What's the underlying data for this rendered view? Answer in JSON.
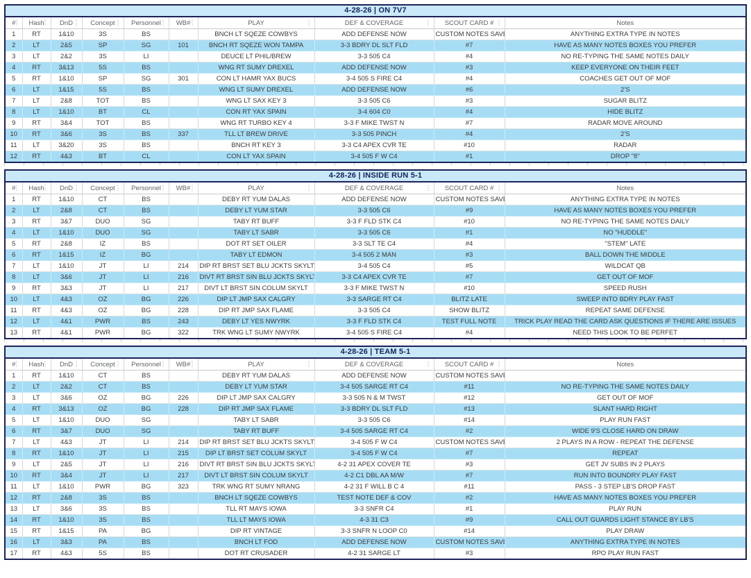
{
  "app": {
    "description_colors": {
      "frame_navy": "#1c2257",
      "row_alt_blue": "#a6ddf4",
      "title_bar_blue": "#c9e9f8",
      "header_text_gray": "#5f6368"
    },
    "kebab_icon": "⋮"
  },
  "table": {
    "columns": [
      {
        "label": "#",
        "has_menu": true
      },
      {
        "label": "Hash",
        "has_menu": true
      },
      {
        "label": "DnD",
        "has_menu": true
      },
      {
        "label": "Concept",
        "has_menu": true
      },
      {
        "label": "Personnel",
        "has_menu": true
      },
      {
        "label": "WB#",
        "has_menu": true
      },
      {
        "label": "PLAY",
        "has_menu": true
      },
      {
        "label": "DEF & COVERAGE",
        "has_menu": true
      },
      {
        "label": "SCOUT CARD #",
        "has_menu": true
      },
      {
        "label": "Notes",
        "has_menu": false
      }
    ],
    "sections": [
      {
        "title": "4-28-26 | ON 7V7",
        "rows": [
          [
            "1",
            "RT",
            "1&10",
            "3S",
            "BS",
            "",
            "BNCH LT SQEZE COWBYS",
            "ADD DEFENSE NOW",
            "CUSTOM NOTES SAVE",
            "ANYTHING EXTRA TYPE IN NOTES"
          ],
          [
            "2",
            "LT",
            "2&5",
            "SP",
            "SG",
            "101",
            "BNCH RT SQEZE WON TAMPA",
            "3-3 BDRY DL SLT FLD",
            "#7",
            "HAVE AS MANY NOTES BOXES YOU PREFER"
          ],
          [
            "3",
            "LT",
            "2&2",
            "3S",
            "LI",
            "",
            "DEUCE LT PHIL/BREW",
            "3-3 505 C4",
            "#4",
            "NO RE-TYPING THE SAME NOTES DAILY"
          ],
          [
            "4",
            "RT",
            "3&13",
            "5S",
            "BS",
            "",
            "WNG RT SUMY DREXEL",
            "ADD DEFENSE NOW",
            "#3",
            "KEEP EVERYONE ON THEIR FEET"
          ],
          [
            "5",
            "RT",
            "1&10",
            "SP",
            "SG",
            "301",
            "CON LT HAMR YAX BUCS",
            "3-4 505 S FIRE C4",
            "#4",
            "COACHES GET OUT OF MOF"
          ],
          [
            "6",
            "LT",
            "1&15",
            "5S",
            "BS",
            "",
            "WNG LT SUMY DREXEL",
            "ADD DEFENSE NOW",
            "#6",
            "2'S"
          ],
          [
            "7",
            "LT",
            "2&8",
            "TOT",
            "BS",
            "",
            "WNG LT SAX KEY 3",
            "3-3 505 C6",
            "#3",
            "SUGAR BLITZ"
          ],
          [
            "8",
            "LT",
            "1&10",
            "BT",
            "CL",
            "",
            "CON RT YAX SPAIN",
            "3-4 604 C0",
            "#4",
            "HIDE BLITZ"
          ],
          [
            "9",
            "RT",
            "3&4",
            "TOT",
            "BS",
            "",
            "WNG RT TURBO KEY 4",
            "3-3 F MIKE TWST N",
            "#7",
            "RADAR MOVE AROUND"
          ],
          [
            "10",
            "RT",
            "3&6",
            "3S",
            "BS",
            "337",
            "TLL LT BREW DRIVE",
            "3-3 505 PINCH",
            "#4",
            "2'S"
          ],
          [
            "11",
            "LT",
            "3&20",
            "3S",
            "BS",
            "",
            "BNCH RT KEY 3",
            "3-3 C4 APEX CVR TE",
            "#10",
            "RADAR"
          ],
          [
            "12",
            "RT",
            "4&3",
            "BT",
            "CL",
            "",
            "CON LT YAX SPAIN",
            "3-4 505 F W C4",
            "#1",
            "DROP \"8\""
          ]
        ]
      },
      {
        "title": "4-28-26 | INSIDE RUN 5-1",
        "rows": [
          [
            "1",
            "RT",
            "1&10",
            "CT",
            "BS",
            "",
            "DEBY RT YUM DALAS",
            "ADD DEFENSE NOW",
            "CUSTOM NOTES SAVE",
            "ANYTHING EXTRA TYPE IN NOTES"
          ],
          [
            "2",
            "LT",
            "2&8",
            "CT",
            "BS",
            "",
            "DEBY LT YUM STAR",
            "3-3 505 C6",
            "#9",
            "HAVE AS MANY NOTES BOXES YOU PREFER"
          ],
          [
            "3",
            "RT",
            "3&7",
            "DUO",
            "SG",
            "",
            "TABY RT BUFF",
            "3-3 F FLD STK C4",
            "#10",
            "NO RE-TYPING THE SAME NOTES DAILY"
          ],
          [
            "4",
            "LT",
            "1&10",
            "DUO",
            "SG",
            "",
            "TABY LT SABR",
            "3-3 505 C6",
            "#1",
            "NO \"HUDDLE\""
          ],
          [
            "5",
            "RT",
            "2&8",
            "IZ",
            "BS",
            "",
            "DOT RT SET OILER",
            "3-3 SLT TE C4",
            "#4",
            "\"STEM\" LATE"
          ],
          [
            "6",
            "RT",
            "1&15",
            "IZ",
            "BG",
            "",
            "TABY LT EDMON",
            "3-4 505 2 MAN",
            "#3",
            "BALL DOWN THE MIDDLE"
          ],
          [
            "7",
            "LT",
            "1&10",
            "JT",
            "LI",
            "214",
            "DIP RT BRST SET BLU JCKTS SKYLT",
            "3-4 505 C4",
            "#5",
            "WILDCAT QB"
          ],
          [
            "8",
            "LT",
            "3&6",
            "JT",
            "LI",
            "216",
            "DIVT RT BRST SIN BLU JCKTS SKYLT",
            "3-3 C4 APEX CVR TE",
            "#7",
            "GET OUT OF MOF"
          ],
          [
            "9",
            "RT",
            "3&3",
            "JT",
            "LI",
            "217",
            "DIVT LT BRST SIN COLUM SKYLT",
            "3-3 F MIKE TWST N",
            "#10",
            "SPEED RUSH"
          ],
          [
            "10",
            "LT",
            "4&3",
            "OZ",
            "BG",
            "226",
            "DIP LT JMP SAX CALGRY",
            "3-3 SARGE RT C4",
            "BLITZ LATE",
            "SWEEP INTO BDRY PLAY FAST"
          ],
          [
            "11",
            "RT",
            "4&3",
            "OZ",
            "BG",
            "228",
            "DIP RT JMP SAX FLAME",
            "3-3 505 C4",
            "SHOW BLITZ",
            "REPEAT SAME DEFENSE"
          ],
          [
            "12",
            "LT",
            "4&1",
            "PWR",
            "BS",
            "243",
            "DEBY LT YES NWYRK",
            "3-3 F FLD STK C4",
            "TEST FULL NOTE",
            "TRICK PLAY READ THE CARD ASK QUESTIONS IF THERE ARE ISSUES"
          ],
          [
            "13",
            "RT",
            "4&1",
            "PWR",
            "BG",
            "322",
            "TRK WNG LT SUMY NWYRK",
            "3-4 505 S FIRE C4",
            "#4",
            "NEED THIS LOOK TO BE PERFET"
          ]
        ]
      },
      {
        "title": "4-28-26 | TEAM 5-1",
        "rows": [
          [
            "1",
            "RT",
            "1&10",
            "CT",
            "BS",
            "",
            "DEBY RT YUM DALAS",
            "ADD DEFENSE NOW",
            "CUSTOM NOTES SAVE",
            ""
          ],
          [
            "2",
            "LT",
            "2&2",
            "CT",
            "BS",
            "",
            "DEBY LT YUM STAR",
            "3-4 505 SARGE RT C4",
            "#11",
            "NO RE-TYPING THE SAME NOTES DAILY"
          ],
          [
            "3",
            "LT",
            "3&6",
            "OZ",
            "BG",
            "226",
            "DIP LT JMP SAX CALGRY",
            "3-3 505 N & M TWST",
            "#12",
            "GET OUT OF MOF"
          ],
          [
            "4",
            "RT",
            "3&13",
            "OZ",
            "BG",
            "228",
            "DIP RT JMP SAX FLAME",
            "3-3 BDRY DL SLT FLD",
            "#13",
            "SLANT HARD RIGHT"
          ],
          [
            "5",
            "LT",
            "1&10",
            "DUO",
            "SG",
            "",
            "TABY LT SABR",
            "3-3 505 C6",
            "#14",
            "PLAY RUN FAST"
          ],
          [
            "6",
            "RT",
            "3&7",
            "DUO",
            "SG",
            "",
            "TABY RT BUFF",
            "3-4 505 SARGE RT C4",
            "#2",
            "WIDE 9'S CLOSE HARD ON DRAW"
          ],
          [
            "7",
            "LT",
            "4&3",
            "JT",
            "LI",
            "214",
            "DIP RT BRST SET BLU JCKTS SKYLT",
            "3-4 505 F W C4",
            "CUSTOM NOTES SAVE",
            "2 PLAYS IN A ROW - REPEAT THE DEFENSE"
          ],
          [
            "8",
            "RT",
            "1&10",
            "JT",
            "LI",
            "215",
            "DIP LT BRST SET COLUM SKYLT",
            "3-4 505 F W C4",
            "#7",
            "REPEAT"
          ],
          [
            "9",
            "LT",
            "2&5",
            "JT",
            "LI",
            "216",
            "DIVT RT BRST SIN BLU JCKTS SKYLT",
            "4-2 31 APEX COVER TE",
            "#3",
            "GET JV SUBS IN 2 PLAYS"
          ],
          [
            "10",
            "RT",
            "3&4",
            "JT",
            "LI",
            "217",
            "DIVT LT BRST SIN COLUM SKYLT",
            "4-2 C1 DBL AA M/W",
            "#7",
            "RUN INTO BOUNDRY PLAY FAST"
          ],
          [
            "11",
            "LT",
            "1&10",
            "PWR",
            "BG",
            "323",
            "TRK WNG RT SUMY NRANG",
            "4-2 31 F WILL B C 4",
            "#11",
            "PASS - 3 STEP LB'S DROP FAST"
          ],
          [
            "12",
            "RT",
            "2&8",
            "3S",
            "BS",
            "",
            "BNCH LT SQEZE COWBYS",
            "TEST NOTE DEF & COV",
            "#2",
            "HAVE AS MANY NOTES BOXES YOU PREFER"
          ],
          [
            "13",
            "LT",
            "3&6",
            "3S",
            "BS",
            "",
            "TLL RT MAYS IOWA",
            "3-3 SNFR C4",
            "#1",
            "PLAY RUN"
          ],
          [
            "14",
            "RT",
            "1&10",
            "3S",
            "BS",
            "",
            "TLL LT MAYS IOWA",
            "4-3 31 C3",
            "#9",
            "CALL OUT GUARDS LIGHT STANCE BY LB'S"
          ],
          [
            "15",
            "RT",
            "1&15",
            "PA",
            "BG",
            "",
            "DIP RT VINTAGE",
            "3-3 SNFR N LOOP C0",
            "#14",
            "PLAY DRAW"
          ],
          [
            "16",
            "LT",
            "3&3",
            "PA",
            "BS",
            "",
            "BNCH LT FOD",
            "ADD DEFENSE NOW",
            "CUSTOM NOTES SAVE",
            "ANYTHING EXTRA TYPE IN NOTES"
          ],
          [
            "17",
            "RT",
            "4&3",
            "5S",
            "BS",
            "",
            "DOT RT CRUSADER",
            "4-2 31 SARGE LT",
            "#3",
            "RPO PLAY RUN FAST"
          ]
        ]
      }
    ]
  }
}
